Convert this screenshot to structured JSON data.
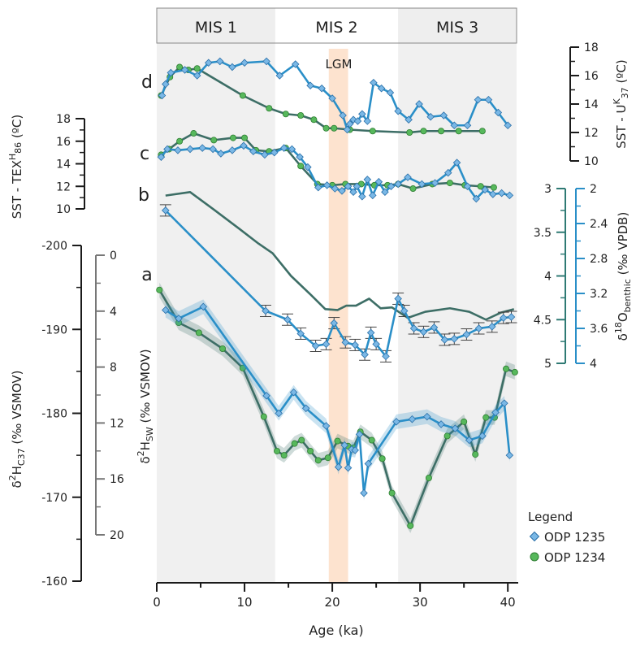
{
  "chart_data": {
    "type": "line",
    "x": {
      "label": "Age (ka)",
      "range": [
        0,
        41
      ],
      "ticks": [
        "0",
        "10",
        "20",
        "30",
        "40"
      ]
    },
    "mis_bands": [
      {
        "label": "MIS 1",
        "range": [
          0,
          13.5
        ],
        "color": "#f0f0f0"
      },
      {
        "label": "MIS 2",
        "range": [
          13.5,
          27.5
        ],
        "color": "#ffffff"
      },
      {
        "label": "MIS 3",
        "range": [
          27.5,
          41
        ],
        "color": "#f0f0f0"
      }
    ],
    "lgm": {
      "label": "LGM",
      "range": [
        19.6,
        21.8
      ],
      "color": "#fde3cf"
    },
    "colors": {
      "odp1235": "#2a8fc8",
      "odp1234": "#3d6e66",
      "odp1235_marker": "#7ab8e6",
      "odp1234_marker": "#57b85c"
    },
    "legend": {
      "title": "Legend",
      "items": [
        "ODP 1235",
        "ODP 1234"
      ]
    },
    "panel_labels": [
      "d",
      "c",
      "b",
      "a"
    ],
    "axes": {
      "uk37": {
        "label": "SST - U K 37 (ºC)",
        "ticks": [
          "18",
          "16",
          "14",
          "12",
          "10"
        ],
        "range": [
          10,
          18
        ]
      },
      "tex86": {
        "label": "SST - TEX H 86 (ºC)",
        "ticks": [
          "18",
          "16",
          "14",
          "12",
          "10"
        ],
        "range": [
          10,
          18
        ]
      },
      "d18o_1234": {
        "ticks": [
          "3",
          "3.5",
          "4",
          "4.5",
          "5"
        ],
        "range": [
          3,
          5
        ]
      },
      "d18o_1235": {
        "label": "δ18O benthic (‰ VPDB)",
        "ticks": [
          "2",
          "2.4",
          "2.8",
          "3.2",
          "3.6",
          "4"
        ],
        "range": [
          2,
          4
        ]
      },
      "d2h_c37": {
        "label": "δ2H C37 (‰ VSMOV)",
        "ticks": [
          "-200",
          "-190",
          "-180",
          "-170",
          "-160"
        ],
        "range": [
          -200,
          -160
        ]
      },
      "d2h_sw": {
        "label": "δ2H SW (‰ VSMOV)",
        "ticks": [
          "0",
          "4",
          "8",
          "12",
          "16",
          "20"
        ],
        "range": [
          0,
          20
        ]
      }
    },
    "series": [
      {
        "panel": "d",
        "name": "ODP 1235",
        "x": [
          0.6,
          1.0,
          1.6,
          3.2,
          4.6,
          5.9,
          7.2,
          8.6,
          10.0,
          12.5,
          14.0,
          15.8,
          17.5,
          18.8,
          20.0,
          21.2,
          21.7,
          22.0,
          22.4,
          22.9,
          23.4,
          24.0,
          24.7,
          25.6,
          26.6,
          27.5,
          28.7,
          29.9,
          31.2,
          32.7,
          33.9,
          35.4,
          36.6,
          37.8,
          38.9,
          40.0
        ],
        "y": [
          14.6,
          15.4,
          16.2,
          16.4,
          16.0,
          16.9,
          17.0,
          16.6,
          16.9,
          17.0,
          16.0,
          16.8,
          15.3,
          15.1,
          14.4,
          13.2,
          12.2,
          12.6,
          12.9,
          12.8,
          13.3,
          12.8,
          15.5,
          15.1,
          14.8,
          13.5,
          12.9,
          14.0,
          13.1,
          13.2,
          12.5,
          12.5,
          14.3,
          14.3,
          13.4,
          12.5
        ]
      },
      {
        "panel": "d",
        "name": "ODP 1234",
        "x": [
          0.5,
          1.5,
          2.6,
          3.6,
          4.6,
          9.8,
          12.8,
          14.7,
          16.4,
          17.9,
          19.3,
          20.2,
          22.0,
          24.6,
          28.8,
          30.4,
          32.4,
          34.4,
          37.1
        ],
        "y": [
          14.6,
          15.9,
          16.6,
          16.4,
          16.5,
          14.6,
          13.7,
          13.3,
          13.2,
          12.9,
          12.3,
          12.3,
          12.2,
          12.1,
          12.0,
          12.1,
          12.1,
          12.1,
          12.1
        ]
      },
      {
        "panel": "c",
        "name": "ODP 1235",
        "x": [
          0.5,
          1.2,
          2.4,
          3.8,
          5.2,
          6.4,
          7.3,
          8.6,
          9.9,
          11.0,
          12.3,
          13.4,
          14.5,
          15.4,
          16.3,
          17.2,
          18.4,
          19.4,
          20.3,
          21.1,
          21.8,
          22.4,
          22.8,
          23.4,
          24.0,
          24.6,
          25.3,
          26.0,
          26.7,
          27.5,
          28.6,
          30.2,
          31.7,
          33.2,
          34.2,
          35.4,
          36.4,
          37.4,
          38.3,
          39.3,
          40.2
        ],
        "y": [
          14.6,
          15.3,
          15.2,
          15.3,
          15.4,
          15.3,
          14.9,
          15.2,
          15.6,
          15.1,
          14.8,
          15.0,
          15.4,
          15.3,
          14.6,
          13.7,
          11.9,
          12.1,
          11.8,
          11.6,
          12.0,
          11.5,
          12.0,
          11.1,
          12.6,
          11.2,
          12.4,
          11.5,
          12.0,
          12.2,
          12.8,
          12.2,
          12.3,
          13.2,
          14.1,
          12.0,
          10.9,
          11.7,
          11.3,
          11.4,
          11.2
        ]
      },
      {
        "panel": "c",
        "name": "ODP 1234",
        "x": [
          0.5,
          1.4,
          2.6,
          4.2,
          6.5,
          8.7,
          10.0,
          11.3,
          12.8,
          14.7,
          16.4,
          18.3,
          20.0,
          21.5,
          23.3,
          24.8,
          26.3,
          27.5,
          29.2,
          31.4,
          33.4,
          35.1,
          36.9,
          38.4
        ],
        "y": [
          14.8,
          15.3,
          16.0,
          16.7,
          16.1,
          16.3,
          16.3,
          15.2,
          15.1,
          15.4,
          13.8,
          12.2,
          12.1,
          12.2,
          12.2,
          12.1,
          12.1,
          12.2,
          11.8,
          12.2,
          12.3,
          12.1,
          12.0,
          11.9
        ]
      },
      {
        "panel": "b",
        "name": "ODP 1235",
        "x": [
          1.0,
          12.4,
          14.9,
          16.4,
          18.1,
          19.3,
          20.2,
          21.5,
          22.6,
          23.7,
          24.4,
          25.0,
          26.1,
          27.5,
          28.2,
          29.3,
          30.4,
          31.6,
          32.8,
          33.9,
          35.3,
          36.7,
          38.2,
          39.5,
          40.4
        ],
        "y": [
          2.25,
          3.4,
          3.5,
          3.66,
          3.8,
          3.78,
          3.54,
          3.76,
          3.79,
          3.9,
          3.65,
          3.78,
          3.92,
          3.26,
          3.4,
          3.6,
          3.64,
          3.59,
          3.73,
          3.72,
          3.67,
          3.6,
          3.58,
          3.48,
          3.47
        ]
      },
      {
        "panel": "b",
        "name": "ODP 1234",
        "x": [
          1.0,
          3.8,
          6.5,
          9.4,
          11.6,
          13.2,
          15.3,
          17.6,
          19.2,
          20.6,
          21.6,
          22.7,
          24.2,
          25.5,
          26.8,
          28.6,
          30.6,
          33.4,
          35.6,
          37.5,
          39.2,
          40.7
        ],
        "y": [
          3.08,
          3.04,
          3.24,
          3.46,
          3.63,
          3.74,
          4.0,
          4.22,
          4.38,
          4.39,
          4.34,
          4.34,
          4.26,
          4.37,
          4.36,
          4.48,
          4.41,
          4.37,
          4.41,
          4.5,
          4.42,
          4.38
        ]
      },
      {
        "panel": "a",
        "name": "ODP 1235",
        "x": [
          1.0,
          2.5,
          5.3,
          12.5,
          13.9,
          15.6,
          17.0,
          19.3,
          20.7,
          21.4,
          21.8,
          22.2,
          22.6,
          23.1,
          23.6,
          24.1,
          27.3,
          29.1,
          30.8,
          32.4,
          34.0,
          35.6,
          37.1,
          38.6,
          39.6,
          40.2
        ],
        "y": [
          -192.3,
          -191.3,
          -192.7,
          -182.1,
          -180.0,
          -182.5,
          -180.6,
          -178.5,
          -173.6,
          -176.2,
          -173.5,
          -175.7,
          -175.6,
          -177.5,
          -170.5,
          -174.0,
          -179.0,
          -179.3,
          -179.6,
          -178.7,
          -178.2,
          -176.8,
          -177.3,
          -180.1,
          -181.2,
          -175.0
        ]
      },
      {
        "panel": "a",
        "name": "ODP 1234",
        "x": [
          0.3,
          2.5,
          4.8,
          7.5,
          9.8,
          12.2,
          13.7,
          14.5,
          15.7,
          16.5,
          17.5,
          18.4,
          19.5,
          20.6,
          21.8,
          22.4,
          23.2,
          24.5,
          25.7,
          26.8,
          28.9,
          31.0,
          33.1,
          35.0,
          36.3,
          37.5,
          38.5,
          39.8,
          40.8
        ],
        "y": [
          -194.7,
          -190.8,
          -189.6,
          -187.7,
          -185.4,
          -179.6,
          -175.5,
          -175.0,
          -176.4,
          -176.8,
          -175.5,
          -174.4,
          -174.7,
          -176.7,
          -176.1,
          -175.9,
          -177.8,
          -176.8,
          -174.6,
          -170.5,
          -166.6,
          -172.3,
          -177.3,
          -179.0,
          -175.1,
          -179.5,
          -179.5,
          -185.3,
          -184.9
        ]
      }
    ]
  }
}
